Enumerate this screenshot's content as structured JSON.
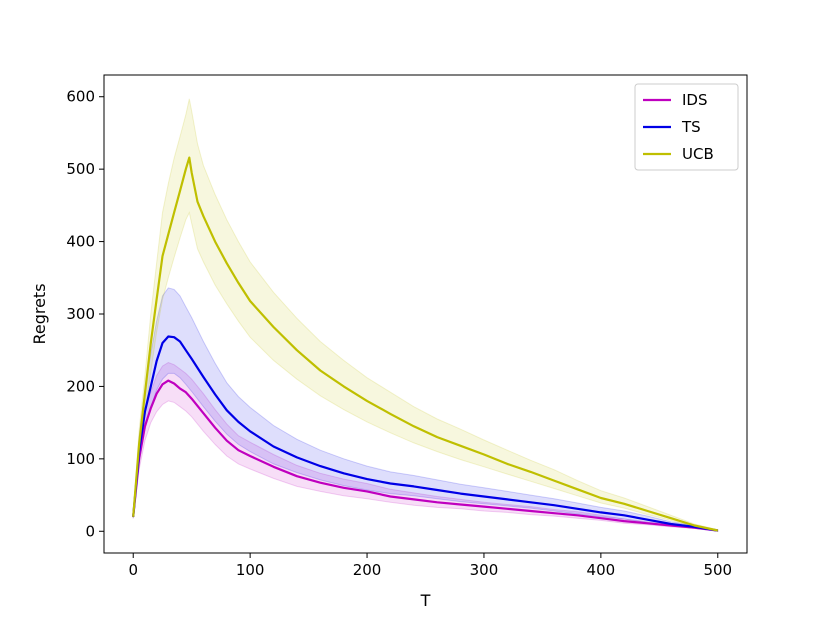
{
  "chart_data": {
    "type": "line",
    "title": "",
    "xlabel": "T",
    "ylabel": "Regrets",
    "xlim": [
      -25,
      525
    ],
    "ylim": [
      -30,
      630
    ],
    "xticks": [
      0,
      100,
      200,
      300,
      400,
      500
    ],
    "yticks": [
      0,
      100,
      200,
      300,
      400,
      500,
      600
    ],
    "grid": false,
    "legend_position": "top-right",
    "series": [
      {
        "name": "IDS",
        "color": "#bf00bf",
        "x": [
          0,
          5,
          10,
          15,
          20,
          25,
          30,
          35,
          40,
          45,
          50,
          60,
          70,
          80,
          90,
          100,
          120,
          140,
          160,
          180,
          200,
          220,
          240,
          260,
          280,
          300,
          320,
          340,
          360,
          380,
          400,
          420,
          440,
          460,
          480,
          500
        ],
        "y": [
          20,
          100,
          145,
          170,
          190,
          203,
          208,
          204,
          197,
          192,
          183,
          163,
          143,
          125,
          112,
          104,
          89,
          76,
          67,
          60,
          55,
          48,
          44,
          40,
          37,
          34,
          31,
          28,
          25,
          22,
          18,
          14,
          11,
          8,
          5,
          1
        ],
        "lower": [
          18,
          85,
          125,
          150,
          165,
          175,
          180,
          178,
          172,
          166,
          158,
          138,
          120,
          104,
          93,
          86,
          73,
          62,
          55,
          49,
          45,
          40,
          36,
          33,
          31,
          28,
          26,
          23,
          21,
          18,
          15,
          11,
          9,
          6,
          4,
          0
        ],
        "upper": [
          22,
          115,
          165,
          192,
          215,
          228,
          233,
          230,
          224,
          218,
          210,
          190,
          168,
          148,
          132,
          123,
          106,
          91,
          80,
          72,
          66,
          58,
          53,
          48,
          44,
          40,
          37,
          34,
          30,
          27,
          22,
          17,
          13,
          10,
          7,
          2
        ]
      },
      {
        "name": "TS",
        "color": "#0000e6",
        "x": [
          0,
          5,
          10,
          15,
          20,
          25,
          30,
          35,
          40,
          45,
          50,
          60,
          70,
          80,
          90,
          100,
          120,
          140,
          160,
          180,
          200,
          220,
          240,
          260,
          280,
          300,
          320,
          340,
          360,
          380,
          400,
          420,
          440,
          460,
          480,
          500
        ],
        "y": [
          20,
          110,
          165,
          200,
          235,
          260,
          269,
          268,
          262,
          250,
          238,
          213,
          189,
          167,
          151,
          138,
          117,
          102,
          90,
          80,
          72,
          66,
          62,
          57,
          52,
          48,
          44,
          40,
          36,
          31,
          26,
          22,
          16,
          10,
          6,
          1
        ],
        "lower": [
          18,
          95,
          140,
          170,
          195,
          210,
          218,
          218,
          212,
          203,
          193,
          172,
          152,
          134,
          120,
          110,
          93,
          81,
          71,
          63,
          57,
          52,
          49,
          45,
          41,
          38,
          35,
          32,
          28,
          24,
          20,
          17,
          12,
          8,
          4,
          0
        ],
        "upper": [
          22,
          130,
          195,
          245,
          290,
          325,
          336,
          334,
          325,
          310,
          295,
          262,
          232,
          205,
          186,
          171,
          146,
          127,
          112,
          100,
          90,
          82,
          77,
          71,
          65,
          60,
          55,
          50,
          45,
          39,
          33,
          28,
          21,
          13,
          8,
          2
        ]
      },
      {
        "name": "UCB",
        "color": "#bfbf00",
        "x": [
          0,
          5,
          10,
          15,
          20,
          25,
          30,
          35,
          40,
          45,
          48,
          50,
          55,
          60,
          70,
          80,
          90,
          100,
          120,
          140,
          160,
          180,
          200,
          220,
          240,
          260,
          280,
          300,
          320,
          340,
          360,
          380,
          400,
          420,
          440,
          460,
          480,
          500
        ],
        "y": [
          20,
          120,
          190,
          260,
          320,
          380,
          410,
          440,
          470,
          500,
          516,
          495,
          455,
          435,
          400,
          370,
          343,
          318,
          282,
          250,
          222,
          200,
          180,
          162,
          145,
          130,
          118,
          106,
          93,
          82,
          70,
          58,
          46,
          38,
          28,
          18,
          8,
          1
        ],
        "lower": [
          18,
          100,
          160,
          220,
          275,
          320,
          350,
          378,
          405,
          430,
          440,
          425,
          390,
          372,
          340,
          314,
          290,
          268,
          236,
          210,
          187,
          168,
          151,
          136,
          122,
          110,
          99,
          89,
          79,
          69,
          59,
          49,
          39,
          32,
          23,
          15,
          6,
          0
        ],
        "upper": [
          22,
          140,
          215,
          300,
          370,
          440,
          480,
          515,
          545,
          575,
          597,
          580,
          535,
          505,
          465,
          430,
          400,
          372,
          330,
          294,
          262,
          236,
          212,
          192,
          172,
          155,
          141,
          126,
          112,
          98,
          85,
          70,
          56,
          46,
          34,
          22,
          10,
          2
        ]
      }
    ]
  }
}
